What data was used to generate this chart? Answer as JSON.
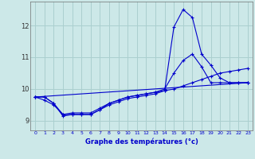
{
  "xlabel": "Graphe des températures (°c)",
  "background_color": "#cce8e8",
  "grid_color": "#aacfcf",
  "line_color": "#0000cc",
  "xlim": [
    -0.5,
    23.5
  ],
  "ylim": [
    8.7,
    12.75
  ],
  "yticks": [
    9,
    10,
    11,
    12
  ],
  "xticks": [
    0,
    1,
    2,
    3,
    4,
    5,
    6,
    7,
    8,
    9,
    10,
    11,
    12,
    13,
    14,
    15,
    16,
    17,
    18,
    19,
    20,
    21,
    22,
    23
  ],
  "series1": [
    9.75,
    9.75,
    9.55,
    9.15,
    9.2,
    9.2,
    9.2,
    9.35,
    9.5,
    9.6,
    9.7,
    9.75,
    9.8,
    9.85,
    9.95,
    11.95,
    12.5,
    12.25,
    11.1,
    10.75,
    10.35,
    10.2,
    10.2,
    10.2
  ],
  "series2": [
    9.75,
    9.65,
    9.5,
    9.2,
    9.25,
    9.25,
    9.25,
    9.4,
    9.55,
    9.65,
    9.75,
    9.8,
    9.85,
    9.9,
    10.0,
    10.5,
    10.9,
    11.1,
    10.7,
    10.2,
    10.2,
    10.2,
    10.2,
    10.2
  ],
  "series3": [
    9.75,
    9.75,
    9.55,
    9.2,
    9.2,
    9.2,
    9.2,
    9.35,
    9.55,
    9.65,
    9.75,
    9.8,
    9.85,
    9.9,
    9.95,
    10.0,
    10.1,
    10.2,
    10.3,
    10.4,
    10.5,
    10.55,
    10.6,
    10.65
  ],
  "series4_x": [
    0,
    23
  ],
  "series4_y": [
    9.75,
    10.2
  ]
}
